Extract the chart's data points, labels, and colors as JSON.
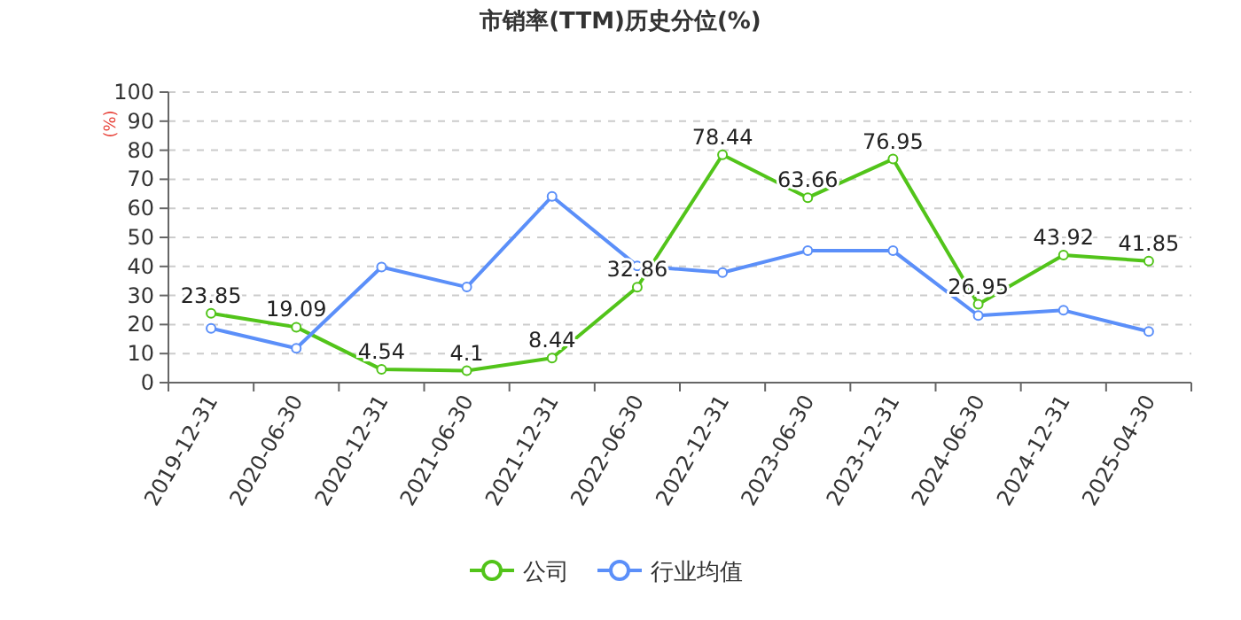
{
  "chart_data": {
    "type": "line",
    "title": "市销率(TTM)历史分位(%)",
    "ylabel": "(%)",
    "categories": [
      "2019-12-31",
      "2020-06-30",
      "2020-12-31",
      "2021-06-30",
      "2021-12-31",
      "2022-06-30",
      "2022-12-31",
      "2023-06-30",
      "2023-12-31",
      "2024-06-30",
      "2024-12-31",
      "2025-04-30"
    ],
    "series": [
      {
        "name": "公司",
        "color": "#52c41a",
        "values": [
          23.85,
          19.09,
          4.54,
          4.1,
          8.44,
          32.86,
          78.44,
          63.66,
          76.95,
          26.95,
          43.92,
          41.85
        ],
        "value_labels": [
          "23.85",
          "19.09",
          "4.54",
          "4.1",
          "8.44",
          "32.86",
          "78.44",
          "63.66",
          "76.95",
          "26.95",
          "43.92",
          "41.85"
        ]
      },
      {
        "name": "行业均值",
        "color": "#5b8ff9",
        "values": [
          18.7,
          11.8,
          39.8,
          32.9,
          64.1,
          40.2,
          37.9,
          45.4,
          45.4,
          23.1,
          24.9,
          17.6
        ]
      }
    ],
    "ylim": [
      0,
      100
    ],
    "yticks": [
      0,
      10,
      20,
      30,
      40,
      50,
      60,
      70,
      80,
      90,
      100
    ],
    "grid": "y",
    "legend": "bottom",
    "marker": "circle",
    "line_style": "solid"
  }
}
